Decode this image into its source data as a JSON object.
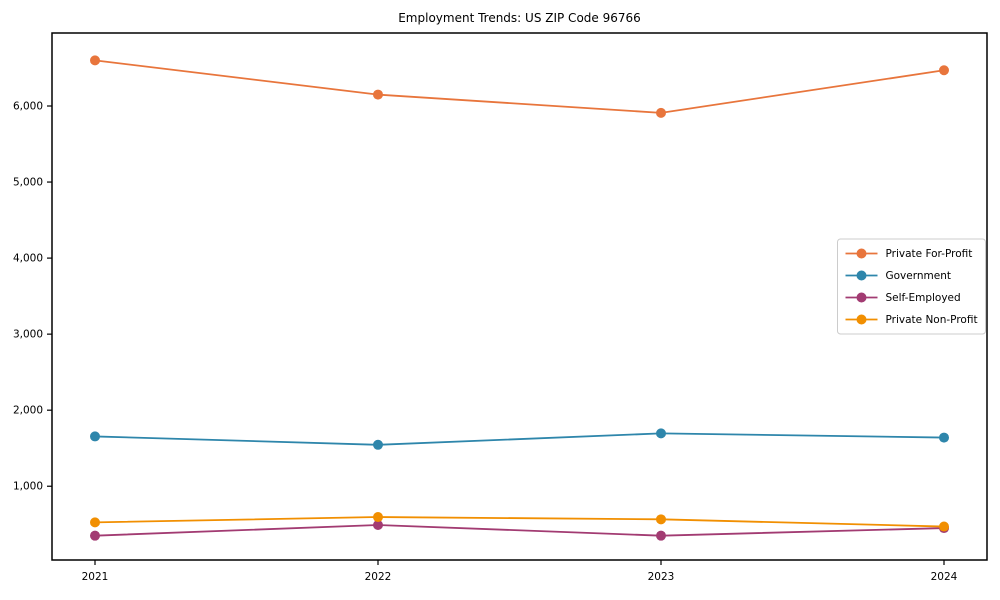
{
  "chart_data": {
    "type": "line",
    "title": "Employment Trends: US ZIP Code 96766",
    "xlabel": "",
    "ylabel": "",
    "categories": [
      "2021",
      "2022",
      "2023",
      "2024"
    ],
    "series": [
      {
        "name": "Private For-Profit",
        "color": "#E8753C",
        "values": [
          6600,
          6150,
          5910,
          6470
        ]
      },
      {
        "name": "Government",
        "color": "#2E86AB",
        "values": [
          1655,
          1545,
          1695,
          1640
        ]
      },
      {
        "name": "Self-Employed",
        "color": "#A23B72",
        "values": [
          350,
          490,
          350,
          450
        ]
      },
      {
        "name": "Private Non-Profit",
        "color": "#F18F01",
        "values": [
          525,
          595,
          565,
          470
        ]
      }
    ],
    "yticks": [
      {
        "value": 1000,
        "label": "1,000"
      },
      {
        "value": 2000,
        "label": "2,000"
      },
      {
        "value": 3000,
        "label": "3,000"
      },
      {
        "value": 4000,
        "label": "4,000"
      },
      {
        "value": 5000,
        "label": "5,000"
      },
      {
        "value": 6000,
        "label": "6,000"
      }
    ],
    "ylim": [
      30,
      6960
    ],
    "legend_position": "center right",
    "grid": false,
    "marker": "circle",
    "frame_color": "#000000",
    "background_color": "#ffffff"
  }
}
